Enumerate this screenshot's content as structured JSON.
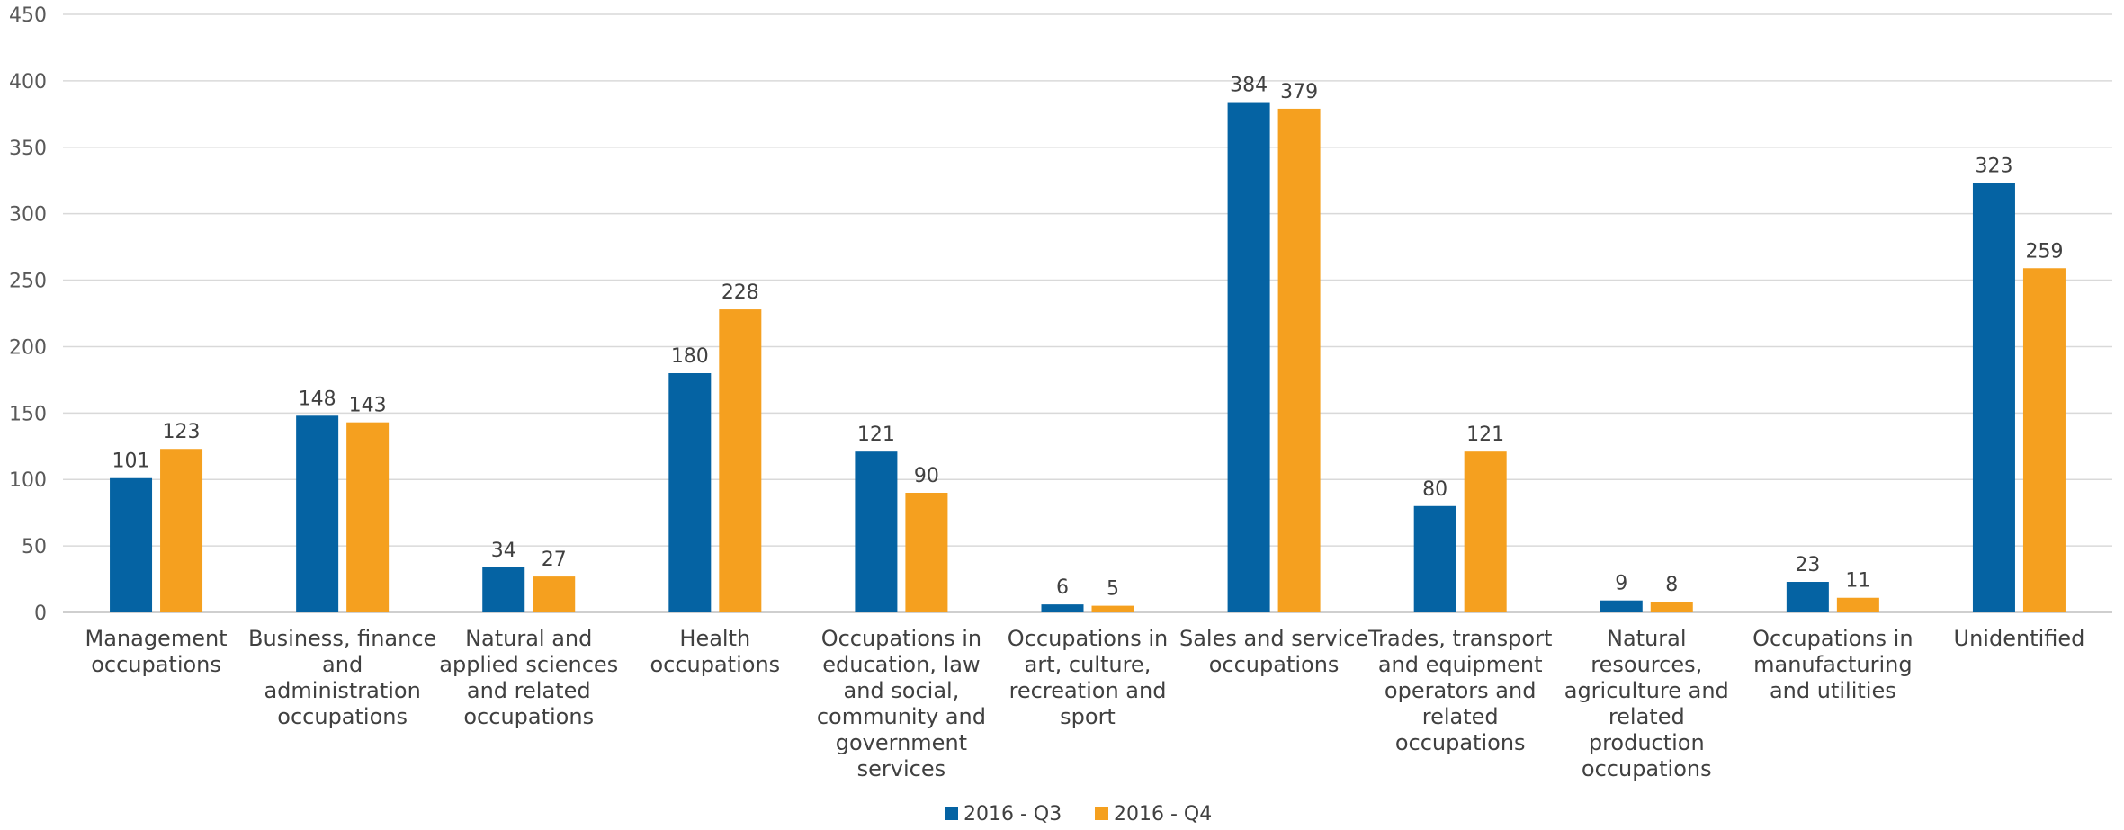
{
  "chart_data": {
    "type": "bar",
    "title": "",
    "xlabel": "",
    "ylabel": "",
    "ylim": [
      0,
      450
    ],
    "yticks": [
      0,
      50,
      100,
      150,
      200,
      250,
      300,
      350,
      400,
      450
    ],
    "grid": true,
    "legend_position": "bottom-center",
    "categories": [
      [
        "Management",
        "occupations"
      ],
      [
        "Business, finance",
        "and",
        "administration",
        "occupations"
      ],
      [
        "Natural and",
        "applied sciences",
        "and related",
        "occupations"
      ],
      [
        "Health",
        "occupations"
      ],
      [
        "Occupations in",
        "education, law",
        "and social,",
        "community and",
        "government",
        "services"
      ],
      [
        "Occupations in",
        "art, culture,",
        "recreation and",
        "sport"
      ],
      [
        "Sales and service",
        "occupations"
      ],
      [
        "Trades, transport",
        "and equipment",
        "operators and",
        "related",
        "occupations"
      ],
      [
        "Natural",
        "resources,",
        "agriculture and",
        "related",
        "production",
        "occupations"
      ],
      [
        "Occupations in",
        "manufacturing",
        "and utilities"
      ],
      [
        "Unidentified"
      ]
    ],
    "series": [
      {
        "name": "2016 - Q3",
        "color": "#0563a3",
        "values": [
          101,
          148,
          34,
          180,
          121,
          6,
          384,
          80,
          9,
          23,
          323
        ]
      },
      {
        "name": "2016 - Q4",
        "color": "#f5a01f",
        "values": [
          123,
          143,
          27,
          228,
          90,
          5,
          379,
          121,
          8,
          11,
          259
        ]
      }
    ]
  }
}
